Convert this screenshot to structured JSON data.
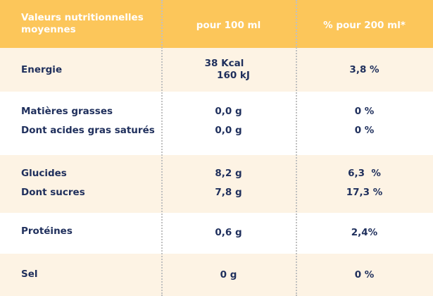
{
  "header": {
    "col1": "Valeurs nutritionnelles moyennes",
    "col2": "pour 100 ml",
    "col3": "% pour 200 ml*"
  },
  "rows": {
    "energie": {
      "label": "Energie",
      "per100_kcal": "38 Kcal",
      "per100_kj": "160 kJ",
      "percent": "3,8 %"
    },
    "matieres_grasses": {
      "label": "Matières grasses",
      "per100": "0,0 g",
      "percent": "0 %"
    },
    "acides_gras_satures": {
      "label": "Dont acides gras saturés",
      "per100": "0,0 g",
      "percent": "0 %"
    },
    "glucides": {
      "label": "Glucides",
      "per100": "8,2 g",
      "percent": "6,3  %"
    },
    "sucres": {
      "label": "Dont sucres",
      "per100": "7,8 g",
      "percent": "17,3 %"
    },
    "proteines": {
      "label": "Protéines",
      "per100": "0,6 g",
      "percent": "2,4%"
    },
    "sel": {
      "label": "Sel",
      "per100": "0 g",
      "percent": "0 %"
    }
  }
}
